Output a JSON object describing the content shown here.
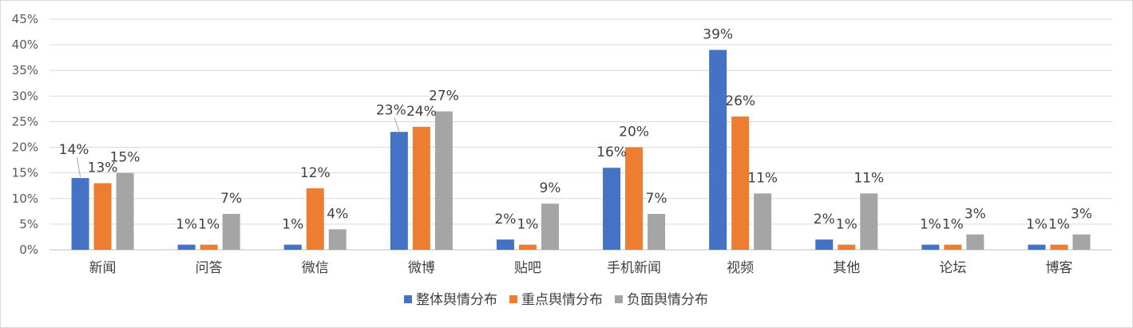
{
  "chart_data": {
    "type": "bar",
    "title": "",
    "xlabel": "",
    "ylabel": "",
    "ylim": [
      0,
      45
    ],
    "y_ticks": [
      "0%",
      "5%",
      "10%",
      "15%",
      "20%",
      "25%",
      "30%",
      "35%",
      "40%",
      "45%"
    ],
    "grid": true,
    "legend_position": "bottom",
    "categories": [
      "新闻",
      "问答",
      "微信",
      "微博",
      "贴吧",
      "手机新闻",
      "视频",
      "其他",
      "论坛",
      "博客"
    ],
    "series": [
      {
        "name": "整体舆情分布",
        "color": "#4472c4",
        "values": [
          14,
          1,
          1,
          23,
          2,
          16,
          39,
          2,
          1,
          1
        ],
        "labels": [
          "14%",
          "1%",
          "1%",
          "23%",
          "2%",
          "16%",
          "39%",
          "2%",
          "1%",
          "1%"
        ]
      },
      {
        "name": "重点舆情分布",
        "color": "#ed7d31",
        "values": [
          13,
          1,
          12,
          24,
          1,
          20,
          26,
          1,
          1,
          1
        ],
        "labels": [
          "13%",
          "1%",
          "12%",
          "24%",
          "1%",
          "20%",
          "26%",
          "1%",
          "1%",
          "1%"
        ]
      },
      {
        "name": "负面舆情分布",
        "color": "#a5a5a5",
        "values": [
          15,
          7,
          4,
          27,
          9,
          7,
          11,
          11,
          3,
          3
        ],
        "labels": [
          "15%",
          "7%",
          "4%",
          "27%",
          "9%",
          "7%",
          "11%",
          "11%",
          "3%",
          "3%"
        ]
      }
    ]
  }
}
